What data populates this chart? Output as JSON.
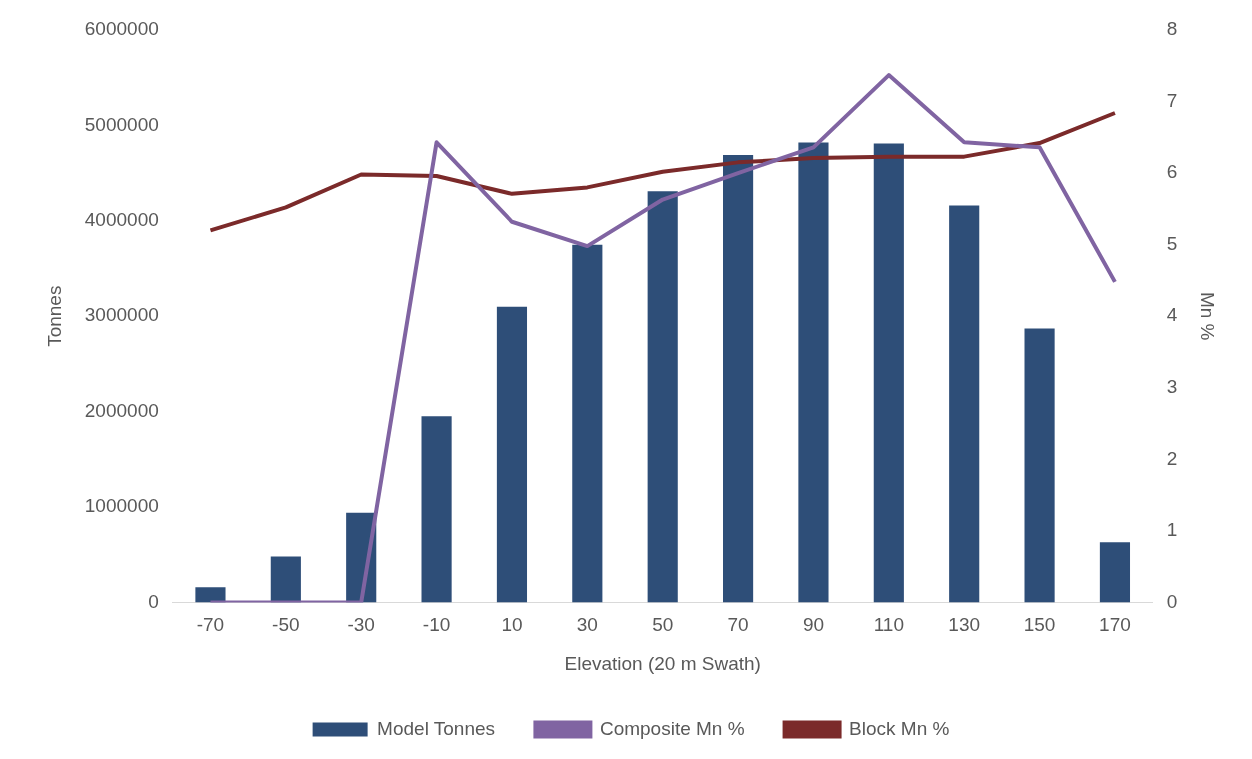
{
  "chart_data": {
    "type": "bar",
    "xlabel": "Elevation (20 m Swath)",
    "ylabel": "Tonnes",
    "y2label": "Mn %",
    "categories": [
      "-70",
      "-50",
      "-30",
      "-10",
      "10",
      "30",
      "50",
      "70",
      "90",
      "110",
      "130",
      "150",
      "170"
    ],
    "series": [
      {
        "name": "Model Tonnes",
        "color": "#2e4e78",
        "values": [
          160000,
          480000,
          940000,
          1950000,
          3100000,
          3750000,
          4310000,
          4690000,
          4820000,
          4810000,
          4160000,
          2870000,
          630000
        ]
      },
      {
        "name": "Composite Mn %",
        "type": "line",
        "axis": "y2",
        "color": "#8064a2",
        "values": [
          0,
          0,
          0,
          6.43,
          5.32,
          4.98,
          5.63,
          6.0,
          6.36,
          7.37,
          6.43,
          6.36,
          4.48
        ]
      },
      {
        "name": "Block Mn %",
        "type": "line",
        "axis": "y2",
        "color": "#7b2a2a",
        "values": [
          5.2,
          5.52,
          5.98,
          5.96,
          5.71,
          5.8,
          6.02,
          6.15,
          6.21,
          6.23,
          6.23,
          6.42,
          6.84
        ]
      }
    ],
    "ylim": [
      0,
      6000000
    ],
    "yticks": [
      0,
      1000000,
      2000000,
      3000000,
      4000000,
      5000000,
      6000000
    ],
    "y2lim": [
      0,
      8
    ],
    "y2ticks": [
      0,
      1,
      2,
      3,
      4,
      5,
      6,
      7,
      8
    ],
    "grid": false,
    "legend": "bottom",
    "marker": "none"
  }
}
